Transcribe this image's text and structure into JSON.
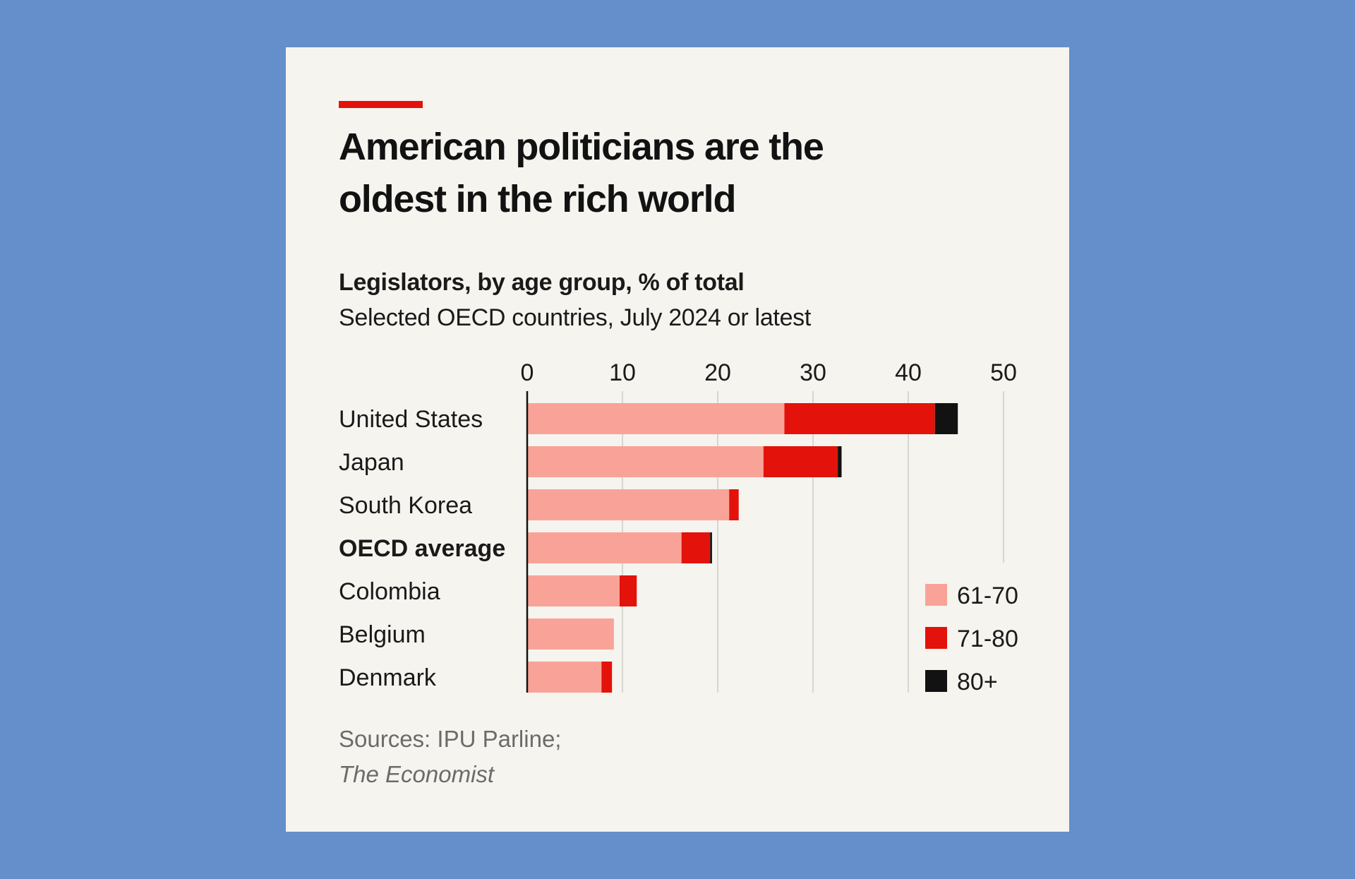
{
  "title_line1": "American politicians are the",
  "title_line2": "oldest in the rich world",
  "subtitle": "Legislators, by age group, % of total",
  "subtitle_2": "Selected OECD countries, July 2024 or latest",
  "source_line1": "Sources: IPU Parline;",
  "source_line2": "The Economist",
  "colors": {
    "accent": "#e3120b",
    "series_61_70": "#f9a398",
    "series_71_80": "#e3120b",
    "series_80_plus": "#121212",
    "gridline": "#d6d6d3",
    "axis": "#121212",
    "card": "#f5f4ef",
    "background": "#648fcb"
  },
  "chart_data": {
    "type": "bar",
    "orientation": "horizontal",
    "stacked": true,
    "categories": [
      "United States",
      "Japan",
      "South Korea",
      "OECD average",
      "Colombia",
      "Belgium",
      "Denmark"
    ],
    "highlight_category": "OECD average",
    "series": [
      {
        "name": "61-70",
        "values": [
          27,
          24.8,
          21.2,
          16.2,
          9.7,
          9.1,
          7.8
        ]
      },
      {
        "name": "71-80",
        "values": [
          15.8,
          7.8,
          1.0,
          3.0,
          1.8,
          0.0,
          1.1
        ]
      },
      {
        "name": "80+",
        "values": [
          2.4,
          0.4,
          0.0,
          0.2,
          0.0,
          0.0,
          0.0
        ]
      }
    ],
    "xlim": [
      0,
      50
    ],
    "xticks": [
      0,
      10,
      20,
      30,
      40,
      50
    ],
    "x_axis_position": "top",
    "grid": true,
    "legend_position": "bottom-right"
  }
}
